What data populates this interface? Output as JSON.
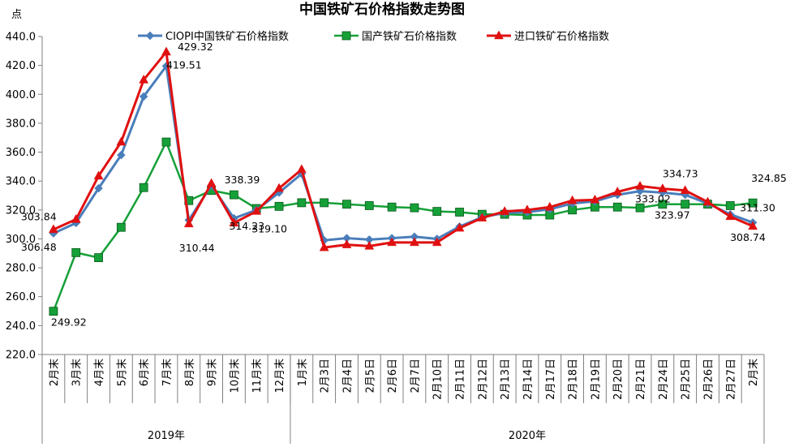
{
  "chart_data": {
    "type": "line",
    "title": "中国铁矿石价格指数走势图",
    "ylabel": "点",
    "ylim": [
      220,
      440
    ],
    "yticks": [
      "220.0",
      "240.0",
      "260.0",
      "280.0",
      "300.0",
      "320.0",
      "340.0",
      "360.0",
      "380.0",
      "400.0",
      "420.0",
      "440.0"
    ],
    "grid": false,
    "legend_position": "top",
    "categories": [
      "2月末",
      "3月末",
      "4月末",
      "5月末",
      "6月末",
      "7月末",
      "8月末",
      "9月末",
      "10月末",
      "11月末",
      "12月末",
      "1月末",
      "2月3日",
      "2月4日",
      "2月5日",
      "2月6日",
      "2月7日",
      "2月10日",
      "2月11日",
      "2月12日",
      "2月13日",
      "2月14日",
      "2月17日",
      "2月18日",
      "2月19日",
      "2月20日",
      "2月21日",
      "2月24日",
      "2月25日",
      "2月26日",
      "2月27日",
      "2月末"
    ],
    "groups": [
      {
        "label": "2019年",
        "from": 0,
        "to": 10
      },
      {
        "label": "2020年",
        "from": 11,
        "to": 31
      }
    ],
    "series": [
      {
        "name": "CIOPI中国铁矿石价格指数",
        "color": "#4a7ebb",
        "marker": "diamond",
        "values": [
          303.8,
          311.0,
          335.0,
          358.0,
          398.5,
          419.51,
          313.0,
          337.0,
          314.23,
          320.0,
          332.0,
          345.0,
          299.0,
          300.5,
          299.5,
          300.5,
          301.5,
          300.0,
          308.5,
          315.0,
          318.0,
          318.5,
          320.5,
          324.5,
          326.0,
          330.5,
          333.02,
          332.0,
          330.5,
          324.5,
          317.0,
          311.3
        ]
      },
      {
        "name": "国产铁矿石价格指数",
        "color": "#16a038",
        "marker": "square",
        "values": [
          249.92,
          290.5,
          287.0,
          308.0,
          335.5,
          367.0,
          326.5,
          333.5,
          330.5,
          321.0,
          322.5,
          325.0,
          325.0,
          324.0,
          323.0,
          322.0,
          321.5,
          319.0,
          318.5,
          317.0,
          317.0,
          316.5,
          316.5,
          320.0,
          322.0,
          322.0,
          321.5,
          323.97,
          324.0,
          324.0,
          323.0,
          324.85
        ]
      },
      {
        "name": "进口铁矿石价格指数",
        "color": "#e01010",
        "marker": "triangle",
        "values": [
          306.48,
          313.5,
          343.5,
          367.0,
          410.0,
          429.32,
          310.44,
          338.39,
          311.0,
          319.1,
          335.0,
          348.0,
          294.0,
          296.0,
          295.0,
          297.5,
          297.5,
          297.5,
          307.5,
          314.5,
          319.0,
          320.0,
          322.0,
          326.5,
          327.0,
          332.5,
          336.5,
          334.73,
          333.5,
          325.5,
          315.5,
          308.74
        ]
      }
    ],
    "data_labels": [
      {
        "text": "303.84",
        "series": 0,
        "index": 0
      },
      {
        "text": "306.48",
        "series": 2,
        "index": 0
      },
      {
        "text": "249.92",
        "series": 1,
        "index": 0
      },
      {
        "text": "429.32",
        "series": 2,
        "index": 5
      },
      {
        "text": "419.51",
        "series": 0,
        "index": 5
      },
      {
        "text": "319.10",
        "series": 2,
        "index": 9
      },
      {
        "text": "310.44",
        "series": 2,
        "index": 6
      },
      {
        "text": "338.39",
        "series": 2,
        "index": 7
      },
      {
        "text": "314.23",
        "series": 0,
        "index": 8
      },
      {
        "text": "334.73",
        "series": 2,
        "index": 27
      },
      {
        "text": "333.02",
        "series": 0,
        "index": 26
      },
      {
        "text": "323.97",
        "series": 1,
        "index": 27
      },
      {
        "text": "324.85",
        "series": 1,
        "index": 31
      },
      {
        "text": "311.30",
        "series": 0,
        "index": 31
      },
      {
        "text": "308.74",
        "series": 2,
        "index": 31
      }
    ]
  }
}
